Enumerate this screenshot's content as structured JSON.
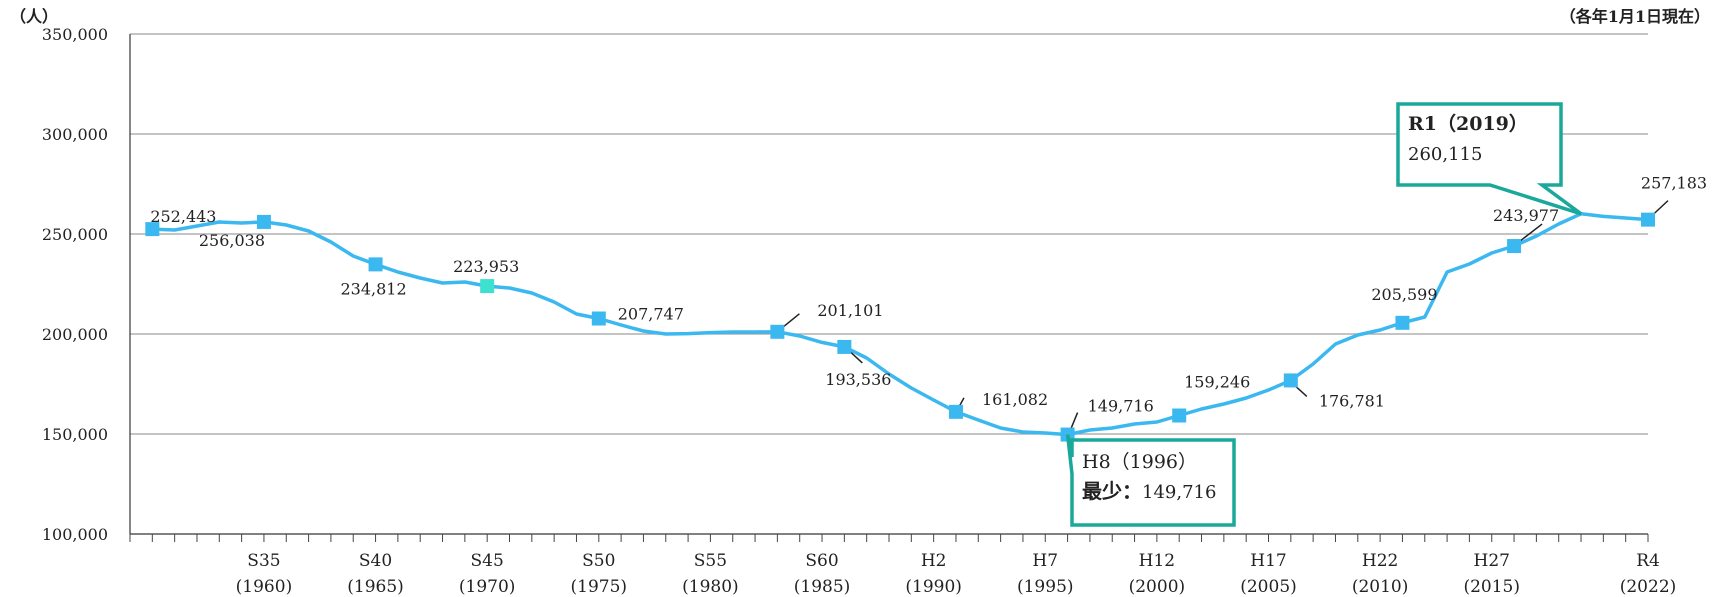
{
  "chart_data": {
    "type": "line",
    "y_unit_label": "（人）",
    "note": "（各年1月1日現在）",
    "ylim": [
      100000,
      350000
    ],
    "y_ticks": [
      "350,000",
      "300,000",
      "250,000",
      "200,000",
      "150,000",
      "100,000"
    ],
    "x_ticks": [
      {
        "era": "S35",
        "year": "(1960)"
      },
      {
        "era": "S40",
        "year": "(1965)"
      },
      {
        "era": "S45",
        "year": "(1970)"
      },
      {
        "era": "S50",
        "year": "(1975)"
      },
      {
        "era": "S55",
        "year": "(1980)"
      },
      {
        "era": "S60",
        "year": "(1985)"
      },
      {
        "era": "H2",
        "year": "(1990)"
      },
      {
        "era": "H7",
        "year": "(1995)"
      },
      {
        "era": "H12",
        "year": "(2000)"
      },
      {
        "era": "H17",
        "year": "(2005)"
      },
      {
        "era": "H22",
        "year": "(2010)"
      },
      {
        "era": "H27",
        "year": "(2015)"
      },
      {
        "era": "R4",
        "year": "(2022)"
      }
    ],
    "series": [
      {
        "color": "#3cb8f0",
        "points": [
          {
            "x": 1955,
            "y": 252443
          },
          {
            "x": 1956,
            "y": 252000
          },
          {
            "x": 1957,
            "y": 254000
          },
          {
            "x": 1958,
            "y": 256000
          },
          {
            "x": 1959,
            "y": 255500
          },
          {
            "x": 1960,
            "y": 256038
          },
          {
            "x": 1961,
            "y": 254500
          },
          {
            "x": 1962,
            "y": 251500
          },
          {
            "x": 1963,
            "y": 246000
          },
          {
            "x": 1964,
            "y": 239000
          },
          {
            "x": 1965,
            "y": 234812
          },
          {
            "x": 1966,
            "y": 231000
          },
          {
            "x": 1967,
            "y": 228000
          },
          {
            "x": 1968,
            "y": 225500
          },
          {
            "x": 1969,
            "y": 226000
          },
          {
            "x": 1970,
            "y": 223953
          },
          {
            "x": 1971,
            "y": 223000
          },
          {
            "x": 1972,
            "y": 220500
          },
          {
            "x": 1973,
            "y": 216000
          },
          {
            "x": 1974,
            "y": 210000
          },
          {
            "x": 1975,
            "y": 207747
          },
          {
            "x": 1976,
            "y": 204500
          },
          {
            "x": 1977,
            "y": 201500
          },
          {
            "x": 1978,
            "y": 200000
          },
          {
            "x": 1979,
            "y": 200200
          },
          {
            "x": 1980,
            "y": 200700
          },
          {
            "x": 1981,
            "y": 201000
          },
          {
            "x": 1982,
            "y": 201000
          },
          {
            "x": 1983,
            "y": 201101
          },
          {
            "x": 1984,
            "y": 199000
          },
          {
            "x": 1985,
            "y": 195800
          },
          {
            "x": 1986,
            "y": 193536
          },
          {
            "x": 1987,
            "y": 188000
          },
          {
            "x": 1988,
            "y": 180000
          },
          {
            "x": 1989,
            "y": 173000
          },
          {
            "x": 1990,
            "y": 167000
          },
          {
            "x": 1991,
            "y": 161082
          },
          {
            "x": 1992,
            "y": 157000
          },
          {
            "x": 1993,
            "y": 153000
          },
          {
            "x": 1994,
            "y": 151000
          },
          {
            "x": 1995,
            "y": 150500
          },
          {
            "x": 1996,
            "y": 149716
          },
          {
            "x": 1997,
            "y": 152000
          },
          {
            "x": 1998,
            "y": 153000
          },
          {
            "x": 1999,
            "y": 155000
          },
          {
            "x": 2000,
            "y": 156000
          },
          {
            "x": 2001,
            "y": 159246
          },
          {
            "x": 2002,
            "y": 162500
          },
          {
            "x": 2003,
            "y": 165000
          },
          {
            "x": 2004,
            "y": 168000
          },
          {
            "x": 2005,
            "y": 172000
          },
          {
            "x": 2006,
            "y": 176781
          },
          {
            "x": 2007,
            "y": 185000
          },
          {
            "x": 2008,
            "y": 195000
          },
          {
            "x": 2009,
            "y": 199500
          },
          {
            "x": 2010,
            "y": 202000
          },
          {
            "x": 2011,
            "y": 205599
          },
          {
            "x": 2012,
            "y": 208500
          },
          {
            "x": 2013,
            "y": 231000
          },
          {
            "x": 2014,
            "y": 235000
          },
          {
            "x": 2015,
            "y": 240500
          },
          {
            "x": 2016,
            "y": 243977
          },
          {
            "x": 2017,
            "y": 249000
          },
          {
            "x": 2018,
            "y": 255000
          },
          {
            "x": 2019,
            "y": 260115
          },
          {
            "x": 2020,
            "y": 258800
          },
          {
            "x": 2021,
            "y": 258000
          },
          {
            "x": 2022,
            "y": 257183
          }
        ]
      }
    ],
    "labeled_points": [
      {
        "x": 1955,
        "value": 252443,
        "label": "252,443",
        "marker_color": "#3cb8f0"
      },
      {
        "x": 1960,
        "value": 256038,
        "label": "256,038",
        "marker_color": "#3cb8f0"
      },
      {
        "x": 1965,
        "value": 234812,
        "label": "234,812",
        "marker_color": "#3cb8f0"
      },
      {
        "x": 1970,
        "value": 223953,
        "label": "223,953",
        "marker_color": "#3ee0d0"
      },
      {
        "x": 1975,
        "value": 207747,
        "label": "207,747",
        "marker_color": "#3cb8f0"
      },
      {
        "x": 1983,
        "value": 201101,
        "label": "201,101",
        "marker_color": "#3cb8f0"
      },
      {
        "x": 1986,
        "value": 193536,
        "label": "193,536",
        "marker_color": "#3cb8f0"
      },
      {
        "x": 1991,
        "value": 161082,
        "label": "161,082",
        "marker_color": "#3cb8f0"
      },
      {
        "x": 1996,
        "value": 149716,
        "label": "149,716",
        "marker_color": "#3cb8f0"
      },
      {
        "x": 2001,
        "value": 159246,
        "label": "159,246",
        "marker_color": "#3cb8f0"
      },
      {
        "x": 2006,
        "value": 176781,
        "label": "176,781",
        "marker_color": "#3cb8f0"
      },
      {
        "x": 2011,
        "value": 205599,
        "label": "205,599",
        "marker_color": "#3cb8f0"
      },
      {
        "x": 2016,
        "value": 243977,
        "label": "243,977",
        "marker_color": "#3cb8f0"
      },
      {
        "x": 2022,
        "value": 257183,
        "label": "257,183",
        "marker_color": "#3cb8f0"
      }
    ],
    "callouts": [
      {
        "x": 2019,
        "title": "R1（2019）",
        "value": "260,115"
      },
      {
        "x": 1996,
        "title": "H8（1996）",
        "prefix": "最少：",
        "value": "149,716"
      }
    ],
    "grid": true,
    "grid_color": "#a0a0a0",
    "callout_border_color": "#1aa89a"
  }
}
